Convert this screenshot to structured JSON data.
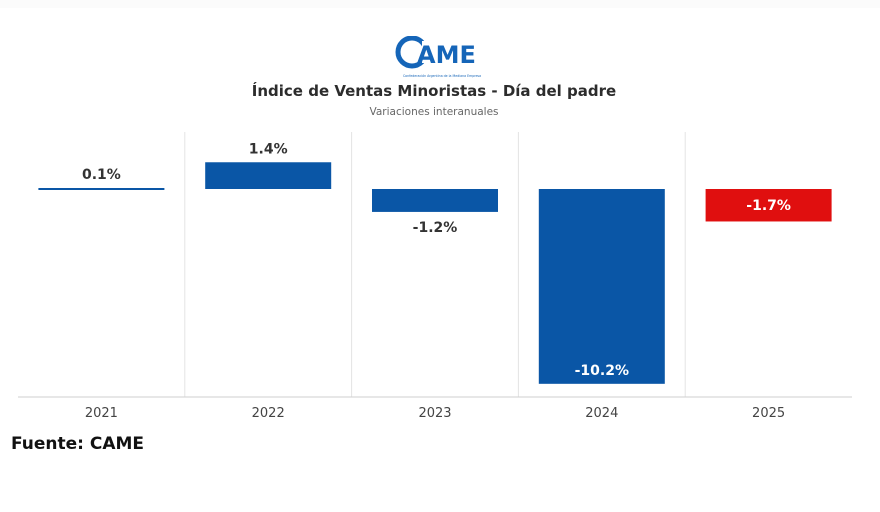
{
  "logo": {
    "text": "CAME",
    "tagline": "Confederación Argentina de la Mediana Empresa"
  },
  "source_label": "Fuente: CAME",
  "colors": {
    "primary_blue": "#0a56a6",
    "highlight_red": "#e00f0f",
    "grid": "#e4e4e4",
    "label": "#333333"
  },
  "chart_data": {
    "type": "bar",
    "title": "Índice de Ventas Minoristas - Día del padre",
    "subtitle": "Variaciones interanuales",
    "xlabel": "",
    "ylabel": "",
    "categories": [
      "2021",
      "2022",
      "2023",
      "2024",
      "2025"
    ],
    "values": [
      0.1,
      1.4,
      -1.2,
      -10.2,
      -1.7
    ],
    "value_labels": [
      "0.1%",
      "1.4%",
      "-1.2%",
      "-10.2%",
      "-1.7%"
    ],
    "bar_colors": [
      "#0a56a6",
      "#0a56a6",
      "#0a56a6",
      "#0a56a6",
      "#e00f0f"
    ],
    "ylim": [
      -10.6,
      1.4
    ],
    "grid": "vertical",
    "legend": "none"
  }
}
